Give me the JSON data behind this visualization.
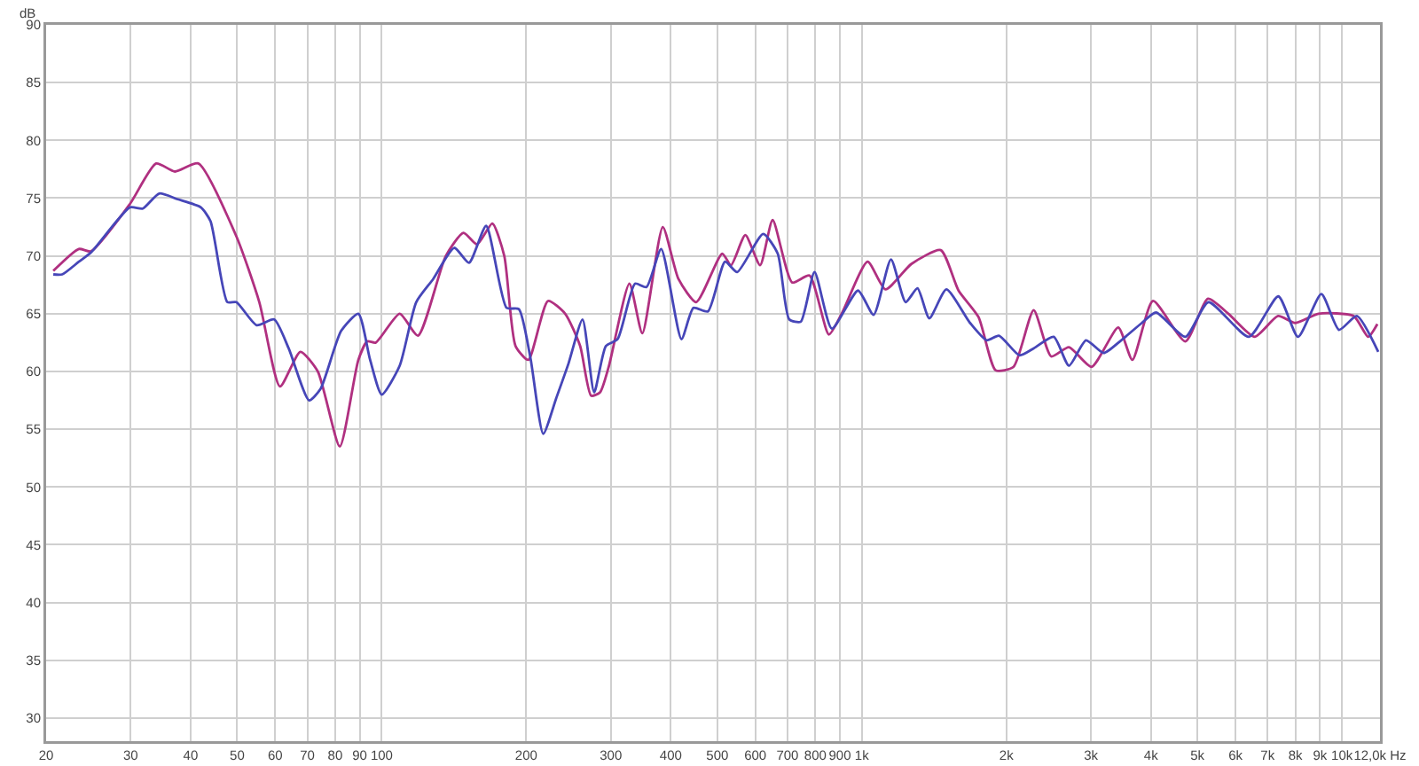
{
  "chart_data": {
    "type": "line",
    "ylabel": "dB",
    "xlim": [
      20,
      12000
    ],
    "ylim": [
      28,
      90
    ],
    "log": "x",
    "grid": true,
    "marker": "none",
    "line_style": "solid",
    "xticks": [
      20,
      30,
      40,
      50,
      60,
      70,
      80,
      90,
      100,
      200,
      300,
      400,
      500,
      600,
      700,
      800,
      900,
      {
        "value": 1000,
        "label": "1k"
      },
      {
        "value": 2000,
        "label": "2k"
      },
      {
        "value": 3000,
        "label": "3k"
      },
      {
        "value": 4000,
        "label": "4k"
      },
      {
        "value": 5000,
        "label": "5k"
      },
      {
        "value": 6000,
        "label": "6k"
      },
      {
        "value": 7000,
        "label": "7k"
      },
      {
        "value": 8000,
        "label": "8k"
      },
      {
        "value": 9000,
        "label": "9k"
      },
      {
        "value": 10000,
        "label": "10k"
      },
      {
        "value": 12000,
        "label": "12,0k Hz"
      }
    ],
    "yticks": [
      30,
      35,
      40,
      45,
      50,
      55,
      60,
      65,
      70,
      75,
      80,
      85,
      90
    ],
    "series": [
      {
        "color": "#b03080",
        "x": [
          20.7,
          23.4,
          24.8,
          29.9,
          33.9,
          37.1,
          41.5,
          49.8,
          55.6,
          61.4,
          67.7,
          73.6,
          81.8,
          89.4,
          93.3,
          97.2,
          109,
          119,
          136,
          148,
          158,
          170,
          180,
          190,
          202,
          222,
          241,
          259,
          273,
          285,
          297,
          328,
          349,
          385,
          415,
          452,
          512,
          534,
          572,
          614,
          652,
          716,
          778,
          854,
          908,
          1028,
          1120,
          1268,
          1460,
          1590,
          1750,
          1900,
          2070,
          2280,
          2480,
          2700,
          3010,
          3420,
          3660,
          4040,
          4720,
          5260,
          5800,
          6580,
          7360,
          8000,
          8940,
          10580,
          11340,
          11850
        ],
        "values": [
          68.7,
          70.6,
          70.4,
          74.5,
          78,
          77.3,
          78,
          71.7,
          66,
          58.7,
          61.7,
          60,
          53.5,
          61,
          62.6,
          62.5,
          65,
          63.1,
          70,
          72,
          71,
          72.8,
          70,
          62.2,
          61,
          66.1,
          65,
          62.2,
          57.9,
          58.2,
          60.4,
          67.6,
          63.3,
          72.5,
          68,
          66,
          70.2,
          69.2,
          71.8,
          69.2,
          73.1,
          67.7,
          68.3,
          63.2,
          65,
          69.5,
          67.1,
          69.3,
          70.5,
          67,
          64.7,
          60.1,
          60.4,
          65.3,
          61.3,
          62.1,
          60.4,
          63.8,
          61,
          66.1,
          62.6,
          66.3,
          65,
          63,
          64.8,
          64.2,
          65,
          64.8,
          63,
          64.1
        ]
      },
      {
        "color": "#4646b8",
        "x": [
          20.7,
          21.6,
          23.4,
          24.8,
          29.9,
          31.8,
          34.4,
          37.6,
          42,
          44,
          47.7,
          49.8,
          54.9,
          59.7,
          64,
          70.6,
          74.6,
          82.3,
          89.4,
          94.6,
          100,
          109,
          118,
          128,
          141.6,
          152,
          165,
          182,
          193,
          204,
          217,
          231,
          245,
          262,
          277,
          293,
          310,
          337,
          356,
          382,
          421,
          446,
          478,
          519,
          550,
          623,
          668,
          706,
          746,
          797,
          866,
          982,
          1058,
          1150,
          1234,
          1306,
          1382,
          1500,
          1680,
          1820,
          1930,
          2130,
          2280,
          2510,
          2700,
          2930,
          3190,
          3470,
          3830,
          4100,
          4720,
          5270,
          6400,
          7370,
          8100,
          9060,
          9860,
          10740,
          11900
        ],
        "values": [
          68.4,
          68.4,
          69.5,
          70.3,
          74.2,
          74.1,
          75.4,
          74.9,
          74.2,
          73,
          66,
          66,
          64,
          64.5,
          62,
          57.5,
          58.5,
          63.5,
          65,
          61,
          58,
          60.5,
          66,
          68,
          70.7,
          69.4,
          72.6,
          65.5,
          65.4,
          61.2,
          54.6,
          57.7,
          60.7,
          64.5,
          58.2,
          62.2,
          62.8,
          67.6,
          67.3,
          70.6,
          62.8,
          65.5,
          65.2,
          69.5,
          68.6,
          71.9,
          70.2,
          64.5,
          64.3,
          68.6,
          63.7,
          67,
          64.9,
          69.7,
          66,
          67.2,
          64.6,
          67.1,
          64.2,
          62.7,
          63.1,
          61.4,
          62,
          63,
          60.5,
          62.7,
          61.6,
          62.7,
          64.2,
          65.1,
          63,
          66,
          63,
          66.5,
          63,
          66.7,
          63.6,
          64.8,
          61.7
        ]
      }
    ]
  }
}
